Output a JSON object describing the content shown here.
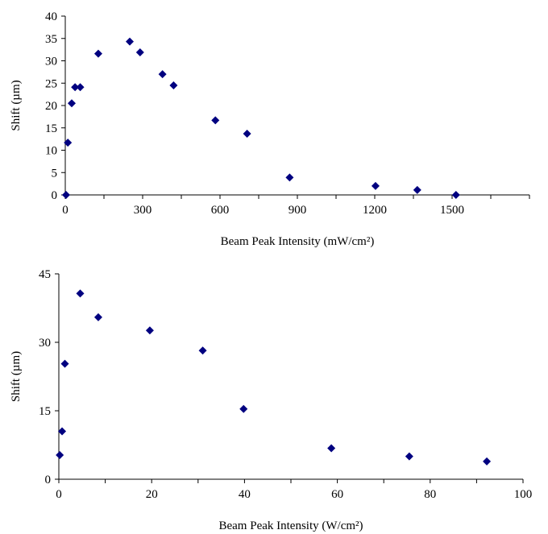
{
  "chart_data": [
    {
      "type": "scatter",
      "xlabel": "Beam Peak Intensity (mW/cm²)",
      "ylabel": "Shift (µm)",
      "xlim": [
        0,
        1800
      ],
      "ylim": [
        0,
        40
      ],
      "xticks": [
        0,
        300,
        600,
        900,
        1200,
        1500
      ],
      "xtick_labels": [
        "0",
        "300",
        "600",
        "900",
        "1200",
        "1500"
      ],
      "yticks": [
        0,
        5,
        10,
        15,
        20,
        25,
        30,
        35,
        40
      ],
      "ytick_labels": [
        "0",
        "5",
        "10",
        "15",
        "20",
        "25",
        "30",
        "35",
        "40"
      ],
      "grid": false,
      "marker": "diamond",
      "marker_color": "#000080",
      "series": [
        {
          "x": [
            3,
            10,
            25,
            38,
            58,
            128,
            250,
            290,
            377,
            420,
            582,
            705,
            870,
            1203,
            1365,
            1515
          ],
          "y": [
            0,
            11.7,
            20.5,
            24.1,
            24.1,
            31.6,
            34.3,
            31.9,
            27.0,
            24.5,
            16.7,
            13.7,
            3.9,
            2.0,
            1.1,
            0
          ]
        }
      ]
    },
    {
      "type": "scatter",
      "xlabel": "Beam Peak Intensity (W/cm²)",
      "ylabel": "Shift (µm)",
      "xlim": [
        0,
        100
      ],
      "ylim": [
        0,
        45
      ],
      "xticks": [
        0,
        20,
        40,
        60,
        80,
        100
      ],
      "xtick_labels": [
        "0",
        "20",
        "40",
        "60",
        "80",
        "100"
      ],
      "yticks": [
        0,
        15,
        30,
        45
      ],
      "ytick_labels": [
        "0",
        "15",
        "30",
        "45"
      ],
      "grid": false,
      "marker": "diamond",
      "marker_color": "#000080",
      "series": [
        {
          "x": [
            0.2,
            0.7,
            1.3,
            4.6,
            8.5,
            19.6,
            31.0,
            39.8,
            58.7,
            75.5,
            92.2
          ],
          "y": [
            5.3,
            10.5,
            25.3,
            40.7,
            35.5,
            32.6,
            28.2,
            15.4,
            6.8,
            5.0,
            3.9
          ]
        }
      ]
    }
  ]
}
